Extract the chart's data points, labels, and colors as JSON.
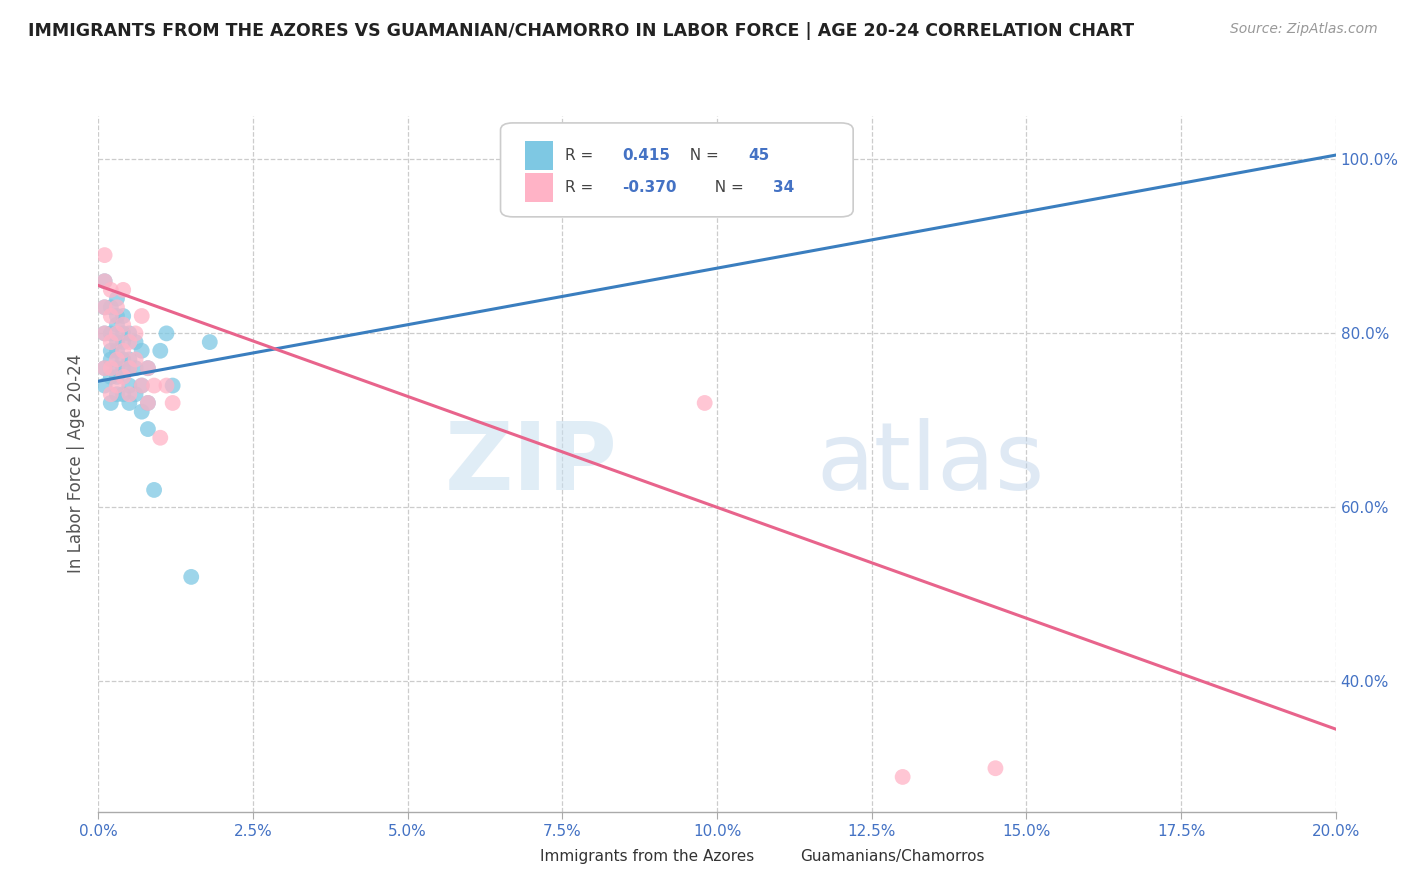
{
  "title": "IMMIGRANTS FROM THE AZORES VS GUAMANIAN/CHAMORRO IN LABOR FORCE | AGE 20-24 CORRELATION CHART",
  "source": "Source: ZipAtlas.com",
  "ylabel": "In Labor Force | Age 20-24",
  "ylabel_right_ticks": [
    "40.0%",
    "60.0%",
    "80.0%",
    "100.0%"
  ],
  "ylabel_right_vals": [
    0.4,
    0.6,
    0.8,
    1.0
  ],
  "legend_r_blue_val": "0.415",
  "legend_n_blue_val": "45",
  "legend_r_pink_val": "-0.370",
  "legend_n_pink_val": "34",
  "legend_label_blue": "Immigrants from the Azores",
  "legend_label_pink": "Guamanians/Chamorros",
  "blue_color": "#7ec8e3",
  "pink_color": "#ffb3c6",
  "blue_line_color": "#3a7ebf",
  "pink_line_color": "#e8648c",
  "watermark_zip": "ZIP",
  "watermark_atlas": "atlas",
  "blue_line_x0": 0.0,
  "blue_line_y0": 0.745,
  "blue_line_x1": 0.2,
  "blue_line_y1": 1.005,
  "pink_line_x0": 0.0,
  "pink_line_y0": 0.855,
  "pink_line_x1": 0.2,
  "pink_line_y1": 0.345,
  "blue_scatter_x": [
    0.001,
    0.001,
    0.001,
    0.001,
    0.001,
    0.002,
    0.002,
    0.002,
    0.002,
    0.002,
    0.002,
    0.003,
    0.003,
    0.003,
    0.003,
    0.003,
    0.003,
    0.003,
    0.003,
    0.004,
    0.004,
    0.004,
    0.004,
    0.004,
    0.004,
    0.005,
    0.005,
    0.005,
    0.005,
    0.005,
    0.006,
    0.006,
    0.006,
    0.007,
    0.007,
    0.007,
    0.008,
    0.008,
    0.008,
    0.009,
    0.01,
    0.011,
    0.012,
    0.015,
    0.018
  ],
  "blue_scatter_y": [
    0.76,
    0.8,
    0.83,
    0.86,
    0.74,
    0.77,
    0.8,
    0.83,
    0.75,
    0.78,
    0.72,
    0.76,
    0.79,
    0.82,
    0.73,
    0.75,
    0.78,
    0.81,
    0.84,
    0.77,
    0.8,
    0.73,
    0.76,
    0.79,
    0.82,
    0.74,
    0.77,
    0.8,
    0.72,
    0.76,
    0.79,
    0.73,
    0.76,
    0.74,
    0.78,
    0.71,
    0.76,
    0.72,
    0.69,
    0.62,
    0.78,
    0.8,
    0.74,
    0.52,
    0.79
  ],
  "pink_scatter_x": [
    0.001,
    0.001,
    0.001,
    0.001,
    0.001,
    0.002,
    0.002,
    0.002,
    0.002,
    0.002,
    0.003,
    0.003,
    0.003,
    0.003,
    0.004,
    0.004,
    0.004,
    0.004,
    0.005,
    0.005,
    0.005,
    0.006,
    0.006,
    0.007,
    0.007,
    0.008,
    0.008,
    0.009,
    0.01,
    0.011,
    0.012,
    0.098,
    0.13,
    0.145
  ],
  "pink_scatter_y": [
    0.83,
    0.8,
    0.86,
    0.76,
    0.89,
    0.82,
    0.79,
    0.85,
    0.76,
    0.73,
    0.8,
    0.77,
    0.83,
    0.74,
    0.81,
    0.78,
    0.75,
    0.85,
    0.79,
    0.76,
    0.73,
    0.8,
    0.77,
    0.82,
    0.74,
    0.76,
    0.72,
    0.74,
    0.68,
    0.74,
    0.72,
    0.72,
    0.29,
    0.3
  ],
  "xlim": [
    0.0,
    0.2
  ],
  "ylim": [
    0.25,
    1.05
  ],
  "xgrid_vals": [
    0.0,
    0.025,
    0.05,
    0.075,
    0.1,
    0.125,
    0.15,
    0.175,
    0.2
  ],
  "ygrid_vals": [
    0.4,
    0.6,
    0.8,
    1.0
  ]
}
